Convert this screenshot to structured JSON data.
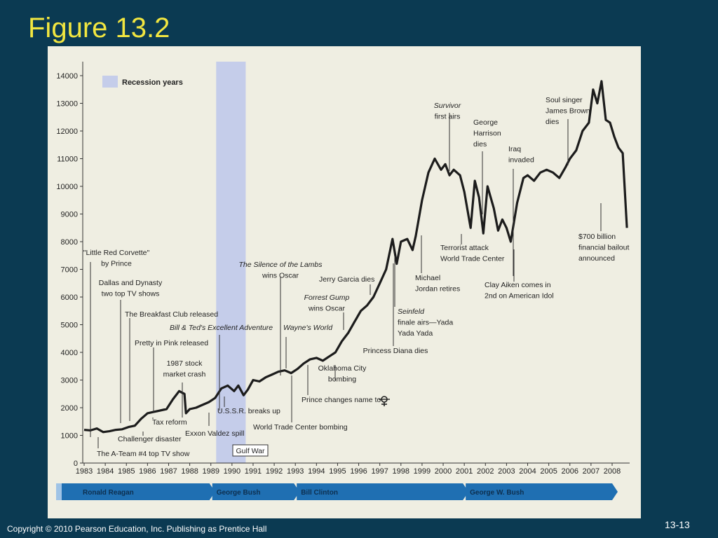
{
  "slide": {
    "title": "Figure 13.2",
    "copyright": "Copyright © 2010 Pearson Education, Inc.  Publishing as Prentice Hall",
    "page_number": "13-13"
  },
  "colors": {
    "background": "#0b3a52",
    "title": "#f2e640",
    "panel": "#efeee2",
    "recession": "#c5cdea",
    "line": "#1c1c1c",
    "president_bar": "#1f6fb2"
  },
  "chart_data": {
    "type": "line",
    "ylim": [
      0,
      14000
    ],
    "xlim": [
      1983,
      2008.8
    ],
    "yticks": [
      "0",
      "1000",
      "2000",
      "3000",
      "4000",
      "5000",
      "6000",
      "7000",
      "8000",
      "9000",
      "10000",
      "11000",
      "12000",
      "13000",
      "14000"
    ],
    "xticks": [
      "1983",
      "1984",
      "1985",
      "1986",
      "1987",
      "1988",
      "1989",
      "1990",
      "1991",
      "1992",
      "1993",
      "1994",
      "1995",
      "1996",
      "1997",
      "1998",
      "1999",
      "2000",
      "2001",
      "2002",
      "2003",
      "2004",
      "2005",
      "2006",
      "2007",
      "2008"
    ],
    "legend": {
      "label": "Recession years",
      "placement": "top-left"
    },
    "recession": [
      1989.25,
      1990.65
    ],
    "presidents": [
      {
        "name": "Ronald Reagan",
        "start": 1983,
        "end": 1989
      },
      {
        "name": "George Bush",
        "start": 1989,
        "end": 1993
      },
      {
        "name": "Bill Clinton",
        "start": 1993,
        "end": 2001
      },
      {
        "name": "George W. Bush",
        "start": 2001,
        "end": 2009
      }
    ],
    "series": [
      {
        "x": [
          1983,
          1983.3,
          1983.6,
          1983.9,
          1984.2,
          1984.5,
          1984.8,
          1985.1,
          1985.4,
          1985.7,
          1986.0,
          1986.3,
          1986.6,
          1986.9,
          1987.2,
          1987.5,
          1987.75,
          1987.82,
          1988.0,
          1988.3,
          1988.6,
          1988.9,
          1989.2,
          1989.5,
          1989.8,
          1990.1,
          1990.3,
          1990.55,
          1990.75,
          1991.0,
          1991.3,
          1991.6,
          1991.9,
          1992.2,
          1992.5,
          1992.8,
          1993.1,
          1993.4,
          1993.7,
          1994.0,
          1994.3,
          1994.6,
          1994.9,
          1995.2,
          1995.5,
          1995.8,
          1996.1,
          1996.4,
          1996.7,
          1997.0,
          1997.3,
          1997.6,
          1997.8,
          1998.0,
          1998.3,
          1998.55,
          1998.7,
          1999.0,
          1999.3,
          1999.6,
          1999.9,
          2000.1,
          2000.3,
          2000.5,
          2000.8,
          2001.0,
          2001.3,
          2001.5,
          2001.7,
          2001.9,
          2002.1,
          2002.4,
          2002.6,
          2002.8,
          2003.0,
          2003.2,
          2003.5,
          2003.8,
          2004.0,
          2004.3,
          2004.6,
          2004.9,
          2005.2,
          2005.5,
          2005.8,
          2006.0,
          2006.3,
          2006.6,
          2006.9,
          2007.1,
          2007.3,
          2007.5,
          2007.7,
          2007.9,
          2008.1,
          2008.3,
          2008.5,
          2008.7
        ],
        "y": [
          1200,
          1180,
          1250,
          1120,
          1150,
          1200,
          1220,
          1300,
          1350,
          1600,
          1800,
          1850,
          1900,
          1950,
          2300,
          2600,
          2500,
          1800,
          1950,
          2000,
          2100,
          2200,
          2350,
          2700,
          2800,
          2600,
          2800,
          2450,
          2650,
          3000,
          2950,
          3100,
          3200,
          3300,
          3350,
          3250,
          3400,
          3600,
          3750,
          3800,
          3700,
          3850,
          4000,
          4400,
          4700,
          5100,
          5500,
          5700,
          6000,
          6500,
          7000,
          8100,
          7200,
          8000,
          8100,
          7700,
          8200,
          9500,
          10500,
          11000,
          10600,
          10800,
          10400,
          10600,
          10400,
          9800,
          8500,
          10200,
          9600,
          8300,
          10000,
          9200,
          8400,
          8800,
          8500,
          8000,
          9400,
          10300,
          10400,
          10200,
          10500,
          10600,
          10500,
          10300,
          10700,
          11000,
          11300,
          12000,
          12300,
          13500,
          13000,
          13800,
          12400,
          12300,
          11800,
          11400,
          11200,
          8500
        ]
      }
    ],
    "annotations": [
      {
        "line1": "\"Little Red Corvette\"",
        "line2": "by Prince"
      },
      {
        "line1": "Dallas and Dynasty",
        "line2": "two top TV shows"
      },
      {
        "line1": "The Breakfast Club released"
      },
      {
        "line1": "Bill & Ted's Excellent Adventure"
      },
      {
        "line1": "Pretty in Pink released"
      },
      {
        "line1": "1987 stock",
        "line2": "market crash"
      },
      {
        "line1": "Tax reform"
      },
      {
        "line1": "Challenger disaster"
      },
      {
        "line1": "The A-Team #4 top TV show"
      },
      {
        "line1": "Exxon Valdez spill"
      },
      {
        "line1": "U.S.S.R. breaks up"
      },
      {
        "line1": "Gulf War"
      },
      {
        "line1": "The Silence of the Lambs",
        "line2": "wins Oscar"
      },
      {
        "line1": "Wayne's World"
      },
      {
        "line1": "World Trade Center bombing"
      },
      {
        "line1": "Prince changes name to"
      },
      {
        "line1": "Oklahoma City",
        "line2": "bombing"
      },
      {
        "line1": "Forrest Gump",
        "line2": "wins Oscar"
      },
      {
        "line1": "Jerry Garcia dies"
      },
      {
        "line1": "Princess Diana dies"
      },
      {
        "line1": "Seinfeld",
        "line2": "finale airs—Yada",
        "line3": "Yada Yada"
      },
      {
        "line1": "Michael",
        "line2": "Jordan retires"
      },
      {
        "line1": "Survivor",
        "line2": "first airs"
      },
      {
        "line1": "George",
        "line2": "Harrison",
        "line3": "dies"
      },
      {
        "line1": "Terrorist attack",
        "line2": "World Trade Center"
      },
      {
        "line1": "Iraq",
        "line2": "invaded"
      },
      {
        "line1": "Clay Aiken comes in",
        "line2": "2nd on American Idol"
      },
      {
        "line1": "Soul singer",
        "line2": "James Brown",
        "line3": "dies"
      },
      {
        "line1": "$700 billion",
        "line2": "financial bailout",
        "line3": "announced"
      }
    ]
  }
}
